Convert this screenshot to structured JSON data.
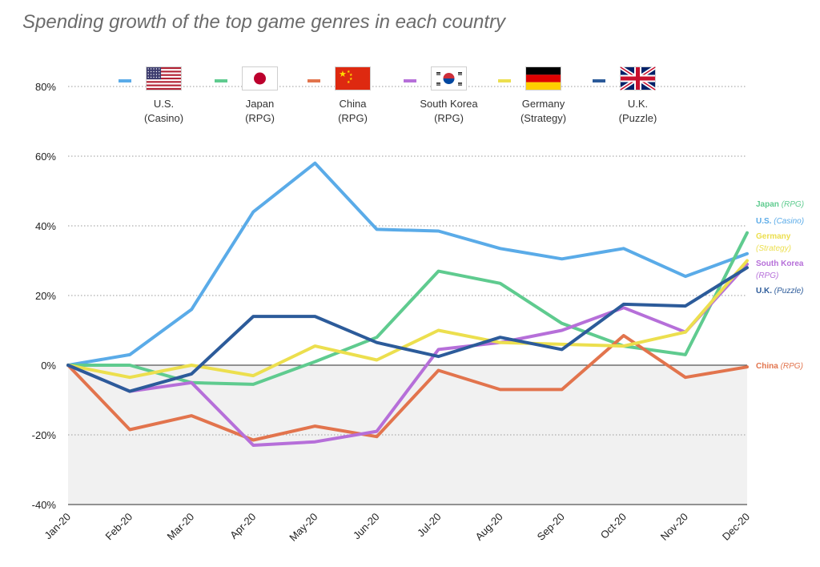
{
  "chart_data": {
    "type": "line",
    "title": "Spending growth of the top game genres in each country",
    "xlabel": "",
    "ylabel": "",
    "categories": [
      "Jan-20",
      "Feb-20",
      "Mar-20",
      "Apr-20",
      "May-20",
      "Jun-20",
      "Jul-20",
      "Aug-20",
      "Sep-20",
      "Oct-20",
      "Nov-20",
      "Dec-20"
    ],
    "ylim": [
      -40,
      80
    ],
    "yticks": [
      -40,
      -20,
      0,
      20,
      40,
      60,
      80
    ],
    "ytick_labels": [
      "-40%",
      "-20%",
      "0%",
      "20%",
      "40%",
      "60%",
      "80%"
    ],
    "negative_region_shaded": true,
    "series": [
      {
        "key": "us",
        "country": "U.S.",
        "genre": "(Casino)",
        "end_country": "U.S.",
        "end_genre": "(Casino)",
        "flag": "us-flag",
        "color": "#5aabe8",
        "values": [
          0,
          3,
          16,
          44,
          58,
          39,
          38.5,
          33.5,
          30.5,
          33.5,
          25.5,
          32
        ]
      },
      {
        "key": "japan",
        "country": "Japan",
        "genre": "(RPG)",
        "end_country": "Japan",
        "end_genre": "(RPG)",
        "flag": "japan-flag",
        "color": "#5fcb8f",
        "values": [
          0,
          0,
          -5,
          -5.5,
          1,
          8,
          27,
          23.5,
          12,
          5.5,
          3,
          38
        ]
      },
      {
        "key": "china",
        "country": "China",
        "genre": "(RPG)",
        "end_country": "China",
        "end_genre": "(RPG)",
        "flag": "china-flag",
        "color": "#e2744d",
        "values": [
          0,
          -18.5,
          -14.5,
          -21.5,
          -17.5,
          -20.5,
          -1.5,
          -7,
          -7,
          8.5,
          -3.5,
          -0.5
        ]
      },
      {
        "key": "south_korea",
        "country": "South Korea",
        "genre": "(RPG)",
        "end_country": "South Korea",
        "end_genre": "(RPG)",
        "flag": "south-korea-flag",
        "color": "#b66fd9",
        "values": [
          0,
          -7.5,
          -5,
          -23,
          -22,
          -19,
          4.5,
          6.5,
          10,
          16.5,
          9.5,
          29
        ]
      },
      {
        "key": "germany",
        "country": "Germany",
        "genre": "(Strategy)",
        "end_country": "Germany",
        "end_genre": "(Strategy)",
        "flag": "germany-flag",
        "color": "#ecdf4e",
        "values": [
          0,
          -3.5,
          0,
          -3,
          5.5,
          1.5,
          10,
          6.5,
          6,
          5.5,
          9.5,
          30
        ]
      },
      {
        "key": "uk",
        "country": "U.K.",
        "genre": "(Puzzle)",
        "end_country": "U.K.",
        "end_genre": "(Puzzle)",
        "flag": "uk-flag",
        "color": "#2c5b9a",
        "values": [
          0,
          -7.5,
          -2.5,
          14,
          14,
          6.5,
          2.5,
          8,
          4.5,
          17.5,
          17,
          28
        ]
      }
    ],
    "end_label_order": [
      "japan",
      "us",
      "germany",
      "south_korea",
      "uk",
      "china"
    ]
  }
}
